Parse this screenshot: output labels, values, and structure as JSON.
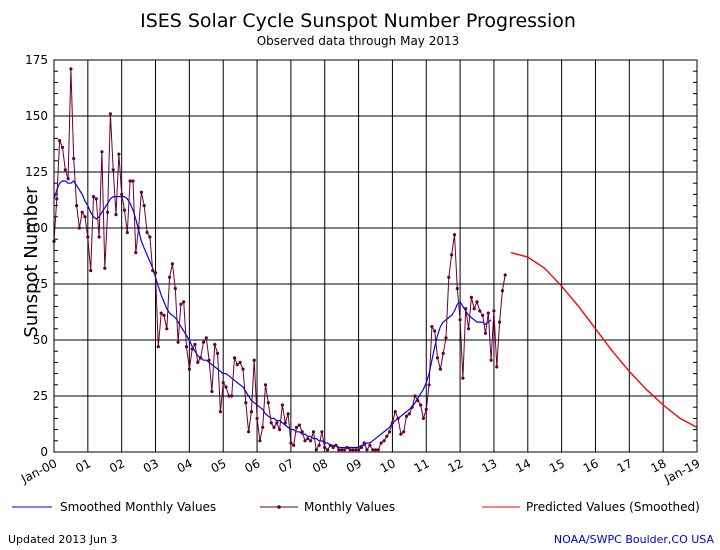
{
  "chart_data": {
    "type": "line",
    "title": "ISES Solar Cycle Sunspot Number Progression",
    "subtitle": "Observed data through May 2013",
    "ylabel": "Sunspot Number",
    "xlabel": "",
    "ylim": [
      0,
      175
    ],
    "yticks": [
      0,
      25,
      50,
      75,
      100,
      125,
      150,
      175
    ],
    "xlim": [
      "2000-01",
      "2019-01"
    ],
    "xtick_labels": [
      "Jan-00",
      "01",
      "02",
      "03",
      "04",
      "05",
      "06",
      "07",
      "08",
      "09",
      "10",
      "11",
      "12",
      "13",
      "14",
      "15",
      "16",
      "17",
      "18",
      "Jan-19"
    ],
    "grid": true,
    "legend_position": "bottom",
    "series": [
      {
        "name": "Monthly Values",
        "color": "#660033",
        "marker": "dot",
        "x_start": "2000-01",
        "step": "month",
        "values": [
          94,
          113,
          139,
          136,
          126,
          122,
          171,
          131,
          110,
          100,
          107,
          105,
          96,
          81,
          114,
          113,
          96,
          134,
          82,
          107,
          151,
          126,
          106,
          133,
          115,
          108,
          98,
          121,
          121,
          89,
          100,
          116,
          110,
          98,
          96,
          81,
          80,
          47,
          62,
          61,
          55,
          78,
          84,
          73,
          49,
          66,
          67,
          47,
          37,
          46,
          48,
          40,
          42,
          49,
          51,
          41,
          27,
          48,
          44,
          18,
          31,
          29,
          25,
          25,
          42,
          39,
          40,
          37,
          22,
          9,
          18,
          41,
          15,
          5,
          11,
          30,
          22,
          13,
          11,
          13,
          10,
          21,
          13,
          17,
          4,
          3,
          11,
          12,
          9,
          5,
          6,
          5,
          9,
          1,
          3,
          9,
          2,
          1,
          3,
          2,
          3,
          1,
          1,
          1,
          2,
          1,
          1,
          1,
          1,
          2,
          4,
          1,
          3,
          1,
          1,
          1,
          4,
          5,
          7,
          9,
          13,
          18,
          15,
          8,
          9,
          16,
          17,
          20,
          25,
          23,
          21,
          15,
          19,
          30,
          56,
          54,
          42,
          37,
          44,
          51,
          78,
          88,
          97,
          73,
          59,
          33,
          64,
          55,
          69,
          64,
          67,
          63,
          61,
          53,
          62,
          41,
          63,
          38,
          58,
          72,
          79
        ]
      },
      {
        "name": "Smoothed Monthly Values",
        "color": "#0000ff",
        "x_start": "2000-01",
        "step": "month",
        "values": [
          113,
          117,
          120,
          121,
          121,
          120,
          120,
          121,
          119,
          117,
          115,
          112,
          110,
          107,
          105,
          104,
          105,
          107,
          109,
          111,
          113,
          114,
          114,
          114,
          114,
          114,
          113,
          111,
          108,
          104,
          99,
          94,
          91,
          88,
          85,
          82,
          78,
          74,
          70,
          67,
          64,
          62,
          61,
          60,
          58,
          56,
          54,
          52,
          50,
          47,
          45,
          43,
          42,
          41,
          41,
          40,
          39,
          38,
          37,
          36,
          35,
          35,
          34,
          33,
          32,
          31,
          30,
          29,
          27,
          25,
          23,
          22,
          21,
          20,
          19,
          17,
          16,
          15,
          15,
          14,
          14,
          13,
          12,
          11,
          10,
          10,
          9,
          9,
          8,
          8,
          7,
          7,
          6,
          6,
          5,
          5,
          4,
          4,
          3,
          3,
          3,
          2,
          2,
          2,
          2,
          2,
          2,
          2,
          2,
          3,
          3,
          4,
          4,
          5,
          6,
          7,
          8,
          9,
          10,
          11,
          13,
          14,
          15,
          16,
          17,
          18,
          19,
          20,
          22,
          24,
          26,
          28,
          31,
          35,
          41,
          47,
          52,
          56,
          58,
          59,
          60,
          61,
          63,
          66,
          67,
          65,
          63,
          61,
          60,
          59,
          58,
          58,
          58,
          57,
          58,
          59
        ]
      },
      {
        "name": "Predicted Values (Smoothed)",
        "color": "#ff0000",
        "x": [
          2013.5,
          2014.0,
          2014.5,
          2015.0,
          2015.5,
          2016.0,
          2016.5,
          2017.0,
          2017.5,
          2018.0,
          2018.5,
          2019.0
        ],
        "values": [
          89,
          87,
          82,
          74,
          65,
          55,
          45,
          36,
          28,
          21,
          15,
          11
        ]
      }
    ]
  },
  "footer": {
    "updated": "Updated 2013 Jun  3",
    "source": "NOAA/SWPC Boulder,CO USA"
  },
  "colors": {
    "smoothed": "#0000ff",
    "monthly": "#660033",
    "predicted": "#ff0000",
    "source_text": "#0000cc"
  }
}
